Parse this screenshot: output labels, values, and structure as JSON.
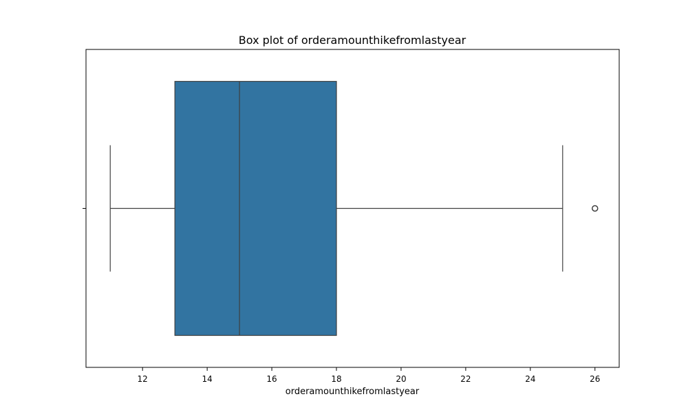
{
  "chart_data": {
    "type": "box",
    "title": "Box plot of orderamounthikefromlastyear",
    "xlabel": "orderamounthikefromlastyear",
    "ylabel": "",
    "xlim": [
      10.25,
      26.75
    ],
    "x_ticks": [
      12,
      14,
      16,
      18,
      20,
      22,
      24,
      26
    ],
    "x_tick_labels": [
      "12",
      "14",
      "16",
      "18",
      "20",
      "22",
      "24",
      "26"
    ],
    "grid": false,
    "series": [
      {
        "whisker_low": 11,
        "q1": 13,
        "median": 15,
        "q3": 18,
        "whisker_high": 25,
        "outliers": [
          26
        ]
      }
    ],
    "colors": {
      "box_fill": "#3274a1",
      "line": "#3f3f3f",
      "frame": "#000000"
    }
  }
}
